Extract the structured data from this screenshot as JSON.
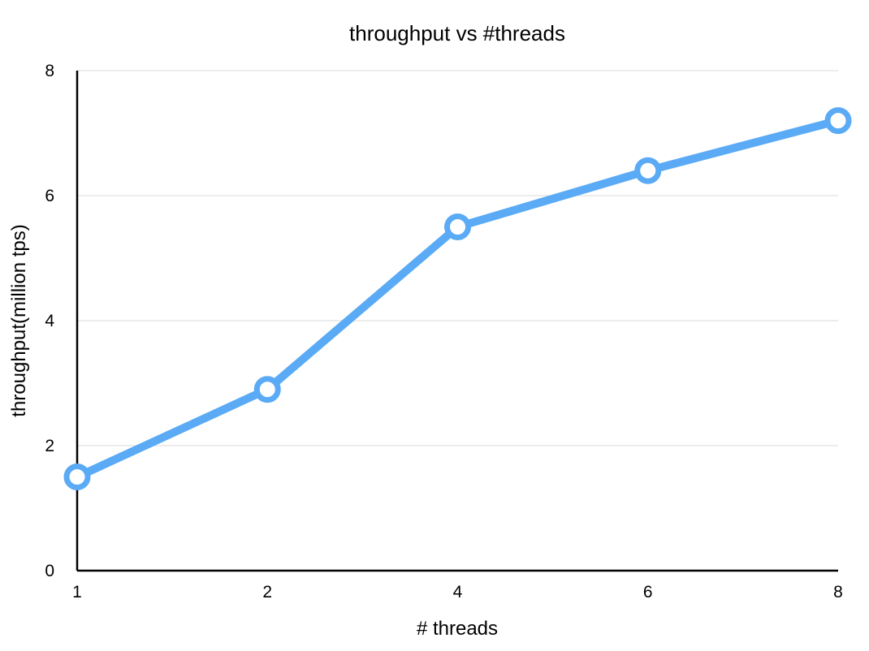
{
  "chart_data": {
    "type": "line",
    "title": "throughput vs #threads",
    "xlabel": "# threads",
    "ylabel": "throughput(million tps)",
    "categories": [
      "1",
      "2",
      "4",
      "6",
      "8"
    ],
    "x_scale": "categorical",
    "y_ticks": [
      "0",
      "2",
      "4",
      "6",
      "8"
    ],
    "ylim": [
      0,
      8
    ],
    "grid": true,
    "legend": "none",
    "series": [
      {
        "values": [
          1.5,
          2.9,
          5.5,
          6.4,
          7.2
        ],
        "color": "#5aaaf5",
        "marker": "hollow-circle"
      }
    ]
  }
}
